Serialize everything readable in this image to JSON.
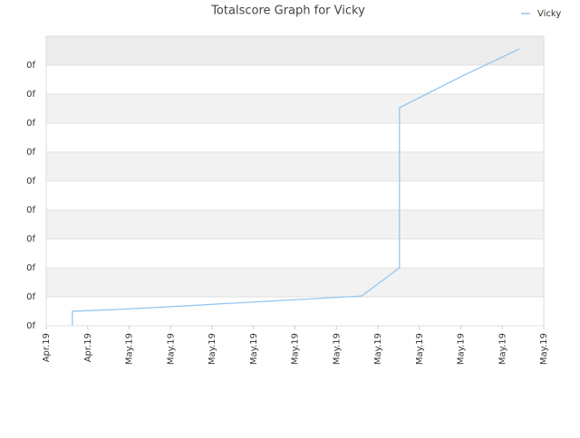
{
  "chart_data": {
    "type": "line",
    "title": "Totalscore Graph for Vicky",
    "x": [
      0.63,
      0.63,
      1.5,
      2.5,
      3.5,
      4.5,
      5.5,
      6.5,
      7.61,
      8.52,
      8.52,
      10,
      11.41
    ],
    "series": [
      {
        "name": "Vicky",
        "color": "#8ec4f2",
        "values": [
          0,
          0.5,
          0.55,
          0.62,
          0.7,
          0.78,
          0.86,
          0.94,
          1.03,
          2,
          7.53,
          8.6,
          9.56
        ]
      }
    ],
    "xlim": [
      0,
      12
    ],
    "xticks": [
      {
        "value": 0,
        "label": "Apr.19"
      },
      {
        "value": 1,
        "label": "Apr.19"
      },
      {
        "value": 2,
        "label": "May.19"
      },
      {
        "value": 3,
        "label": "May.19"
      },
      {
        "value": 4,
        "label": "May.19"
      },
      {
        "value": 5,
        "label": "May.19"
      },
      {
        "value": 6,
        "label": "May.19"
      },
      {
        "value": 7,
        "label": "May.19"
      },
      {
        "value": 8,
        "label": "May.19"
      },
      {
        "value": 9,
        "label": "May.19"
      },
      {
        "value": 10,
        "label": "May.19"
      },
      {
        "value": 11,
        "label": "May.19"
      },
      {
        "value": 12,
        "label": "May.19"
      }
    ],
    "ylim": [
      0,
      10
    ],
    "yticks": [
      {
        "value": 0,
        "label": "0f"
      },
      {
        "value": 1,
        "label": "0f"
      },
      {
        "value": 2,
        "label": "0f"
      },
      {
        "value": 3,
        "label": "0f"
      },
      {
        "value": 4,
        "label": "0f"
      },
      {
        "value": 5,
        "label": "0f"
      },
      {
        "value": 6,
        "label": "0f"
      },
      {
        "value": 7,
        "label": "0f"
      },
      {
        "value": 8,
        "label": "0f"
      },
      {
        "value": 9,
        "label": "0f"
      }
    ],
    "grid": true,
    "legend": "top-right"
  }
}
